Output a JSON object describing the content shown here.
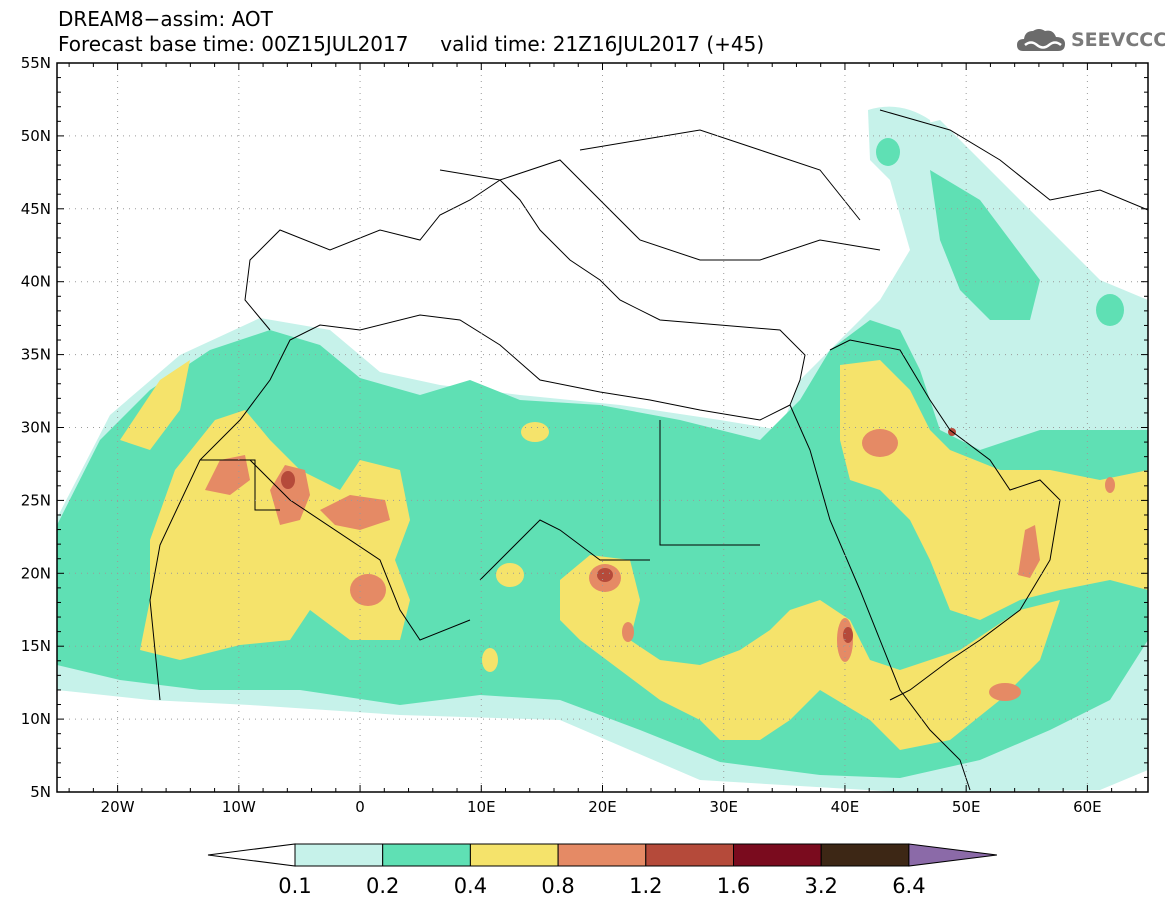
{
  "header": {
    "title_line1": "DREAM8−assim: AOT",
    "title_line2": "Forecast base time: 00Z15JUL2017     valid time: 21Z16JUL2017 (+45)"
  },
  "logo": {
    "text": "SEEVCCC",
    "icon": "cloud-logo-icon",
    "color": "#7a7a7a"
  },
  "map": {
    "lon_range": [
      -25,
      65
    ],
    "lat_range": [
      5,
      55
    ],
    "lon_ticks": [
      {
        "value": -20,
        "label": "20W"
      },
      {
        "value": -10,
        "label": "10W"
      },
      {
        "value": 0,
        "label": "0"
      },
      {
        "value": 10,
        "label": "10E"
      },
      {
        "value": 20,
        "label": "20E"
      },
      {
        "value": 30,
        "label": "30E"
      },
      {
        "value": 40,
        "label": "40E"
      },
      {
        "value": 50,
        "label": "50E"
      },
      {
        "value": 60,
        "label": "60E"
      }
    ],
    "lat_ticks": [
      {
        "value": 55,
        "label": "55N"
      },
      {
        "value": 50,
        "label": "50N"
      },
      {
        "value": 45,
        "label": "45N"
      },
      {
        "value": 40,
        "label": "40N"
      },
      {
        "value": 35,
        "label": "35N"
      },
      {
        "value": 30,
        "label": "30N"
      },
      {
        "value": 25,
        "label": "25N"
      },
      {
        "value": 20,
        "label": "20N"
      },
      {
        "value": 15,
        "label": "15N"
      },
      {
        "value": 10,
        "label": "10N"
      },
      {
        "value": 5,
        "label": "5N"
      }
    ],
    "grid": "dotted"
  },
  "colorbar": {
    "labels": [
      "0.1",
      "0.2",
      "0.4",
      "0.8",
      "1.2",
      "1.6",
      "3.2",
      "6.4"
    ],
    "colors": [
      "#ffffff",
      "#c6f2ea",
      "#5fe0b4",
      "#f5e36b",
      "#e58a65",
      "#b54a3a",
      "#7a0b1e",
      "#3d2715",
      "#8b6aa8"
    ]
  }
}
